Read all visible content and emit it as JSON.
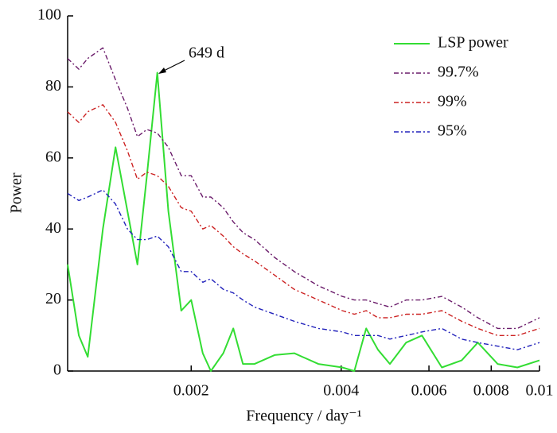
{
  "chart_data": {
    "type": "line",
    "x_label": "Frequency / day⁻¹",
    "y_label": "Power",
    "annotation": "649 d",
    "x": [
      0.00113,
      0.00119,
      0.00124,
      0.00133,
      0.00141,
      0.00149,
      0.00156,
      0.00163,
      0.00171,
      0.0018,
      0.00191,
      0.002,
      0.00211,
      0.00219,
      0.00232,
      0.00243,
      0.00254,
      0.00268,
      0.00294,
      0.00322,
      0.0036,
      0.00402,
      0.00425,
      0.00449,
      0.00474,
      0.00501,
      0.0054,
      0.00581,
      0.00637,
      0.00698,
      0.00752,
      0.00824,
      0.00903,
      0.01
    ],
    "series": [
      {
        "name": "LSP power",
        "color": "#33dd33",
        "dash": "none",
        "values": [
          30,
          10,
          4,
          40,
          63,
          45,
          30,
          55,
          84,
          45,
          17,
          20,
          5,
          0,
          5,
          12,
          2,
          2,
          4.5,
          5,
          2,
          1,
          0,
          12,
          6,
          2,
          8,
          10,
          1,
          3,
          8,
          2,
          1,
          3
        ]
      },
      {
        "name": "99.7%",
        "color": "#6a1b6a",
        "dash": "6 3 2 3",
        "values": [
          88,
          85,
          88,
          91,
          82,
          74,
          66,
          68,
          67,
          63,
          55,
          55,
          49,
          49,
          46,
          42,
          39,
          37,
          32,
          28,
          24,
          21,
          20,
          20,
          19,
          18,
          20,
          20,
          21,
          18,
          15,
          12,
          12,
          15
        ]
      },
      {
        "name": "99%",
        "color": "#cc2222",
        "dash": "6 3 2 3",
        "values": [
          73,
          70,
          73,
          75,
          70,
          62,
          54,
          56,
          55,
          52,
          46,
          45,
          40,
          41,
          38,
          35,
          33,
          31,
          27,
          23,
          20,
          17,
          16,
          17,
          15,
          15,
          16,
          16,
          17,
          14,
          12,
          10,
          10,
          12
        ]
      },
      {
        "name": "95%",
        "color": "#2222bb",
        "dash": "6 3 2 3",
        "values": [
          50,
          48,
          49,
          51,
          47,
          40,
          37,
          37,
          38,
          35,
          28,
          28,
          25,
          26,
          23,
          22,
          20,
          18,
          16,
          14,
          12,
          11,
          10,
          10,
          10,
          9,
          10,
          11,
          12,
          9,
          8,
          7,
          6,
          8
        ]
      }
    ],
    "xscale": "log",
    "xlim": [
      0.00113,
      0.01
    ],
    "xticks": [
      0.002,
      0.004,
      0.006,
      0.008,
      0.01
    ],
    "ylim": [
      0,
      100
    ],
    "yticks": [
      0,
      20,
      40,
      60,
      80,
      100
    ],
    "legend": "top-right",
    "grid": false
  }
}
